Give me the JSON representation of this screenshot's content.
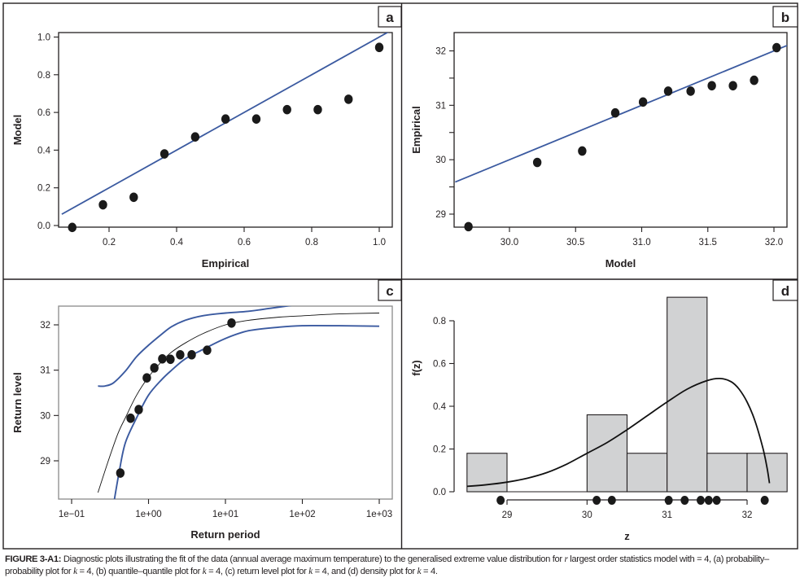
{
  "figure": {
    "caption_label": "FIGURE 3-A1:",
    "caption_text_1": " Diagnostic plots illustrating the fit of the data (annual average maximum temperature) to the generalised extreme value distribution for ",
    "caption_r": "r",
    "caption_text_2": " largest order statistics model with = 4, (a) probability–probability plot for ",
    "caption_k": "k",
    "caption_text_3": " = 4, (b) quantile–quantile plot for ",
    "caption_text_4": " = 4, (c) return level plot for ",
    "caption_text_5": " = 4, and (d) density plot for ",
    "caption_text_6": " = 4."
  },
  "colors": {
    "fit_line": "#3b5aa0",
    "points": "#1a1a1a",
    "hist_fill": "#d1d2d3",
    "frame": "#231f20",
    "plot_box_c": "#8a8a8a"
  },
  "chart_data": [
    {
      "panel": "a",
      "type": "scatter",
      "title": "",
      "xlabel": "Empirical",
      "ylabel": "Model",
      "xlim": [
        0.06,
        1.03
      ],
      "ylim": [
        -0.01,
        1.03
      ],
      "xticks": [
        0.2,
        0.4,
        0.6,
        0.8,
        1.0
      ],
      "xtick_labels": [
        "0.2",
        "0.4",
        "0.6",
        "0.8",
        "1.0"
      ],
      "yticks": [
        0.0,
        0.2,
        0.4,
        0.6,
        0.8,
        1.0
      ],
      "ytick_labels": [
        "0.0",
        "0.2",
        "0.4",
        "0.6",
        "0.8",
        "1.0"
      ],
      "points": {
        "x": [
          0.091,
          0.182,
          0.273,
          0.364,
          0.455,
          0.545,
          0.636,
          0.727,
          0.818,
          0.909,
          1.0
        ],
        "y": [
          -0.01,
          0.11,
          0.15,
          0.38,
          0.47,
          0.565,
          0.565,
          0.615,
          0.615,
          0.67,
          0.945
        ]
      },
      "reference_line": {
        "x": [
          0.06,
          1.03
        ],
        "y": [
          0.06,
          1.03
        ]
      },
      "grid": false
    },
    {
      "panel": "b",
      "type": "scatter",
      "title": "",
      "xlabel": "Model",
      "ylabel": "Empirical",
      "xlim": [
        29.59,
        32.1
      ],
      "ylim": [
        28.77,
        32.33
      ],
      "xticks": [
        30.0,
        30.5,
        31.0,
        31.5,
        32.0
      ],
      "xtick_labels": [
        "30.0",
        "30.5",
        "31.0",
        "31.5",
        "32.0"
      ],
      "yticks": [
        29,
        30,
        31,
        32
      ],
      "ytick_labels": [
        "29",
        "30",
        "31",
        "32"
      ],
      "yminor_ticks": [
        29.5,
        30.5,
        31.5
      ],
      "points": {
        "x": [
          29.69,
          30.21,
          30.55,
          30.8,
          31.01,
          31.2,
          31.37,
          31.53,
          31.69,
          31.85,
          32.02
        ],
        "y": [
          28.77,
          29.95,
          30.16,
          30.86,
          31.06,
          31.26,
          31.26,
          31.36,
          31.36,
          31.46,
          32.06
        ]
      },
      "reference_line": {
        "x": [
          29.59,
          32.1
        ],
        "y": [
          29.59,
          32.1
        ]
      },
      "grid": false
    },
    {
      "panel": "c",
      "type": "line",
      "title": "",
      "xlabel": "Return period",
      "ylabel": "Return level",
      "xscale": "log",
      "xlim": [
        0.067,
        1500
      ],
      "ylim": [
        28.15,
        32.43
      ],
      "xticks": [
        0.1,
        1,
        10,
        100,
        1000
      ],
      "xtick_labels": [
        "1e−01",
        "1e+00",
        "1e+01",
        "1e+02",
        "1e+03"
      ],
      "yticks": [
        29,
        30,
        31,
        32
      ],
      "ytick_labels": [
        "29",
        "30",
        "31",
        "32"
      ],
      "points": {
        "x": [
          0.43,
          0.585,
          0.746,
          0.95,
          1.19,
          1.51,
          1.93,
          2.58,
          3.64,
          5.78,
          12.0
        ],
        "y": [
          28.73,
          29.94,
          30.13,
          30.83,
          31.05,
          31.25,
          31.24,
          31.34,
          31.34,
          31.44,
          32.04
        ]
      },
      "series": [
        {
          "name": "return level estimate",
          "x": [
            0.22,
            0.3,
            0.4,
            0.5,
            0.7,
            1.0,
            1.5,
            2.0,
            3.0,
            5.0,
            10,
            20,
            50,
            100,
            300,
            1000
          ],
          "y": [
            28.3,
            29.0,
            29.6,
            29.95,
            30.45,
            30.85,
            31.2,
            31.4,
            31.6,
            31.8,
            32.0,
            32.1,
            32.17,
            32.2,
            32.24,
            32.26
          ]
        },
        {
          "name": "upper confidence bound",
          "x": [
            0.22,
            0.27,
            0.35,
            0.5,
            0.7,
            1.0,
            1.5,
            2.0,
            3.0,
            5.0,
            10,
            20,
            40,
            73
          ],
          "y": [
            30.65,
            30.65,
            30.72,
            30.98,
            31.3,
            31.55,
            31.8,
            31.96,
            32.1,
            32.2,
            32.26,
            32.3,
            32.37,
            32.43
          ]
        },
        {
          "name": "lower confidence bound",
          "x": [
            0.36,
            0.42,
            0.5,
            0.7,
            1.0,
            1.5,
            2.0,
            3.0,
            5.0,
            10,
            20,
            50,
            100,
            300,
            1000
          ],
          "y": [
            28.15,
            28.8,
            29.4,
            29.95,
            30.45,
            30.8,
            31.0,
            31.25,
            31.45,
            31.7,
            31.87,
            31.95,
            31.98,
            31.98,
            31.97
          ]
        }
      ],
      "grid": false
    },
    {
      "panel": "d",
      "type": "bar",
      "title": "",
      "xlabel": "z",
      "ylabel": "f(z)",
      "xlim": [
        28.5,
        32.5
      ],
      "ylim": [
        0,
        0.92
      ],
      "xticks": [
        29,
        30,
        31,
        32
      ],
      "xtick_labels": [
        "29",
        "30",
        "31",
        "32"
      ],
      "yticks": [
        0.0,
        0.2,
        0.4,
        0.6,
        0.8
      ],
      "ytick_labels": [
        "0.0",
        "0.2",
        "0.4",
        "0.6",
        "0.8"
      ],
      "histogram": {
        "bin_edges": [
          28.5,
          29.0,
          29.5,
          30.0,
          30.5,
          31.0,
          31.5,
          32.0,
          32.5
        ],
        "density": [
          0.18,
          0.0,
          0.0,
          0.36,
          0.18,
          0.91,
          0.18,
          0.18
        ]
      },
      "density_curve": {
        "x": [
          28.5,
          28.75,
          29.0,
          29.25,
          29.5,
          29.75,
          30.0,
          30.25,
          30.5,
          30.75,
          31.0,
          31.25,
          31.5,
          31.66,
          31.8,
          31.9,
          32.0,
          32.1,
          32.2,
          32.25,
          32.28
        ],
        "y": [
          0.025,
          0.033,
          0.045,
          0.063,
          0.09,
          0.13,
          0.18,
          0.23,
          0.29,
          0.355,
          0.42,
          0.48,
          0.52,
          0.53,
          0.515,
          0.48,
          0.42,
          0.33,
          0.2,
          0.11,
          0.04
        ]
      },
      "rug": [
        28.92,
        30.12,
        30.31,
        31.02,
        31.22,
        31.42,
        31.52,
        31.62,
        32.22
      ],
      "grid": false
    }
  ]
}
